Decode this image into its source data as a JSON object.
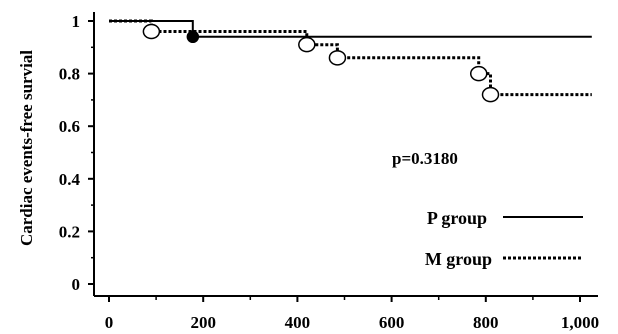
{
  "chart_data": {
    "type": "line",
    "step": true,
    "ylabel": "Cardiac events-free survial",
    "xlabel": "",
    "xlim": [
      0,
      1000
    ],
    "ylim": [
      0,
      1
    ],
    "x_ticks": [
      0,
      200,
      400,
      600,
      800,
      1000
    ],
    "x_tick_labels": [
      "0",
      "200",
      "400",
      "600",
      "800",
      "1,000"
    ],
    "y_ticks": [
      0,
      0.2,
      0.4,
      0.6,
      0.8,
      1
    ],
    "y_tick_labels": [
      "0",
      "0.2",
      "0.4",
      "0.6",
      "0.8",
      "1"
    ],
    "annotation": "p=0.3180",
    "legend_position": "bottom-right",
    "series": [
      {
        "name": "P group",
        "line_style": "solid",
        "x": [
          0,
          178,
          178,
          1025
        ],
        "y": [
          1.0,
          1.0,
          0.94,
          0.94
        ],
        "events": [
          {
            "x": 178,
            "y": 0.94,
            "marker": "filled-circle"
          }
        ]
      },
      {
        "name": "M group",
        "line_style": "dotted",
        "x": [
          0,
          90,
          90,
          420,
          420,
          485,
          485,
          785,
          785,
          810,
          810,
          1025
        ],
        "y": [
          1.0,
          1.0,
          0.96,
          0.96,
          0.91,
          0.91,
          0.86,
          0.86,
          0.8,
          0.8,
          0.72,
          0.72
        ],
        "events": [
          {
            "x": 90,
            "y": 0.96,
            "marker": "open-circle"
          },
          {
            "x": 420,
            "y": 0.91,
            "marker": "open-circle"
          },
          {
            "x": 485,
            "y": 0.86,
            "marker": "open-circle"
          },
          {
            "x": 785,
            "y": 0.8,
            "marker": "open-circle"
          },
          {
            "x": 810,
            "y": 0.72,
            "marker": "open-circle"
          }
        ]
      }
    ]
  }
}
